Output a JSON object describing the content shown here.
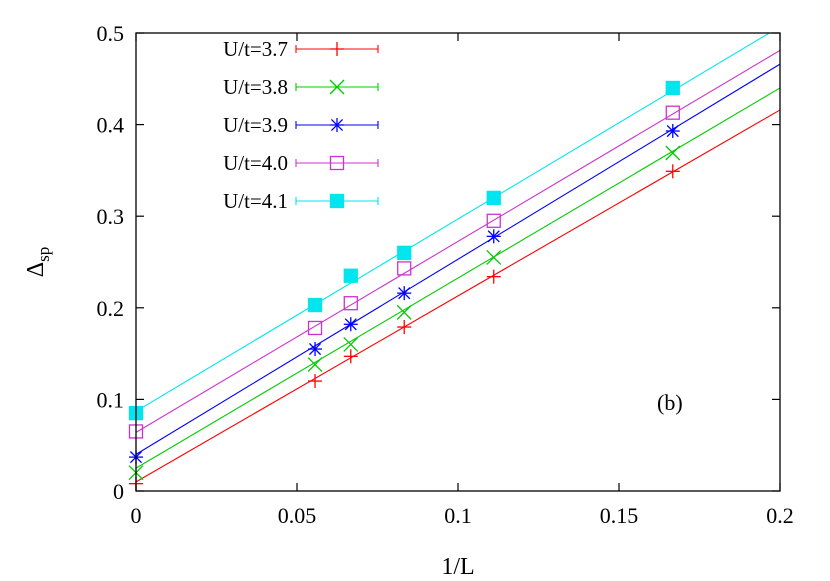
{
  "chart_data": {
    "type": "scatter",
    "xlabel": "1/L",
    "ylabel_main": "Δ",
    "ylabel_sub": "sp",
    "xlim": [
      0,
      0.2
    ],
    "ylim": [
      0,
      0.5
    ],
    "xticks": [
      0,
      0.05,
      0.1,
      0.15,
      0.2
    ],
    "xtick_labels": [
      "0",
      "0.05",
      "0.1",
      "0.15",
      "0.2"
    ],
    "yticks": [
      0,
      0.1,
      0.2,
      0.3,
      0.4,
      0.5
    ],
    "ytick_labels": [
      "0",
      "0.1",
      "0.2",
      "0.3",
      "0.4",
      "0.5"
    ],
    "grid": false,
    "legend_position": "top-left",
    "annotation": "(b)",
    "series": [
      {
        "name": "U/t=3.7",
        "color": "#ff0000",
        "marker": "plus",
        "x": [
          0,
          0.0556,
          0.0667,
          0.0833,
          0.1111,
          0.1667
        ],
        "y": [
          0.008,
          0.12,
          0.147,
          0.179,
          0.234,
          0.349
        ],
        "fit": [
          0.01,
          2.03
        ]
      },
      {
        "name": "U/t=3.8",
        "color": "#00cc00",
        "marker": "cross",
        "x": [
          0,
          0.0556,
          0.0667,
          0.0833,
          0.1111,
          0.1667
        ],
        "y": [
          0.02,
          0.138,
          0.16,
          0.195,
          0.255,
          0.369
        ],
        "fit": [
          0.025,
          2.075
        ]
      },
      {
        "name": "U/t=3.9",
        "color": "#0000ff",
        "marker": "star",
        "x": [
          0,
          0.0556,
          0.0667,
          0.0833,
          0.1111,
          0.1667
        ],
        "y": [
          0.037,
          0.155,
          0.182,
          0.216,
          0.278,
          0.393
        ],
        "fit": [
          0.04,
          2.13
        ]
      },
      {
        "name": "U/t=4.0",
        "color": "#cc33cc",
        "marker": "square-open",
        "x": [
          0,
          0.0556,
          0.0667,
          0.0833,
          0.1111,
          0.1667
        ],
        "y": [
          0.065,
          0.178,
          0.205,
          0.243,
          0.295,
          0.413
        ],
        "fit": [
          0.064,
          2.085
        ]
      },
      {
        "name": "U/t=4.1",
        "color": "#00e5ee",
        "marker": "square-filled",
        "x": [
          0,
          0.0556,
          0.0667,
          0.0833,
          0.1111,
          0.1667
        ],
        "y": [
          0.085,
          0.203,
          0.235,
          0.26,
          0.32,
          0.44
        ],
        "fit": [
          0.087,
          2.1
        ]
      }
    ]
  }
}
